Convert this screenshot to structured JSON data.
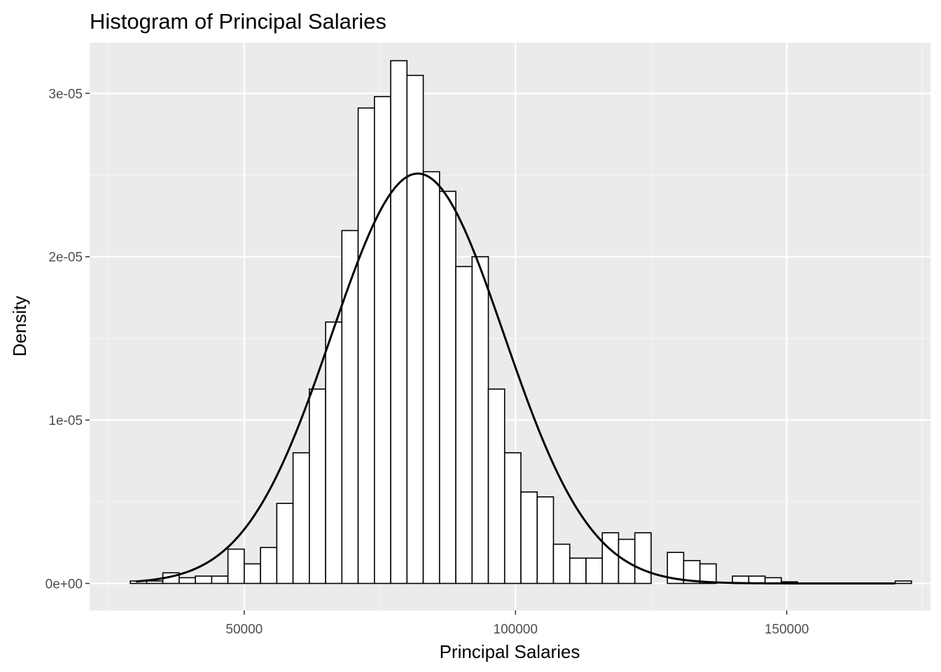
{
  "chart_data": {
    "type": "histogram",
    "title": "Histogram of Principal Salaries",
    "xlabel": "Principal Salaries",
    "ylabel": "Density",
    "xlim": [
      21500,
      176500
    ],
    "ylim": [
      -1.65e-06,
      3.31e-05
    ],
    "x_ticks": [
      50000,
      100000,
      150000
    ],
    "x_tick_labels": [
      "50000",
      "100000",
      "150000"
    ],
    "x_minor_ticks": [
      25000,
      75000,
      125000,
      175000
    ],
    "y_ticks": [
      0,
      1e-05,
      2e-05,
      3e-05
    ],
    "y_tick_labels": [
      "0e+00",
      "1e-05",
      "2e-05",
      "3e-05"
    ],
    "y_minor_ticks": [
      5e-06,
      1.5e-05,
      2.5e-05
    ],
    "bin_width": 3000,
    "bin_start": 29000,
    "bin_values": [
      1.5e-07,
      1.5e-07,
      6.5e-07,
      3.5e-07,
      4.5e-07,
      4.5e-07,
      2.1e-06,
      1.2e-06,
      2.2e-06,
      4.9e-06,
      8e-06,
      1.19e-05,
      1.6e-05,
      2.16e-05,
      2.91e-05,
      2.98e-05,
      3.2e-05,
      3.11e-05,
      2.52e-05,
      2.4e-05,
      1.94e-05,
      2e-05,
      1.19e-05,
      8e-06,
      5.6e-06,
      5.3e-06,
      2.4e-06,
      1.55e-06,
      1.55e-06,
      3.1e-06,
      2.7e-06,
      3.1e-06,
      0,
      1.9e-06,
      1.4e-06,
      1.2e-06,
      0,
      4.5e-07,
      4.5e-07,
      3.5e-07,
      1e-07,
      0,
      0,
      0,
      0,
      0,
      0,
      1.5e-07
    ],
    "density_curve": {
      "type": "normal",
      "mean": 82000,
      "sd": 15900,
      "x_range": [
        30000,
        170000
      ],
      "stroke": "#000000"
    },
    "colors": {
      "panel_background": "#ebebeb",
      "grid_major": "#ffffff",
      "grid_minor": "#f5f5f5",
      "bar_fill": "#ffffff",
      "bar_outline": "#000000",
      "tick": "#333333"
    }
  }
}
